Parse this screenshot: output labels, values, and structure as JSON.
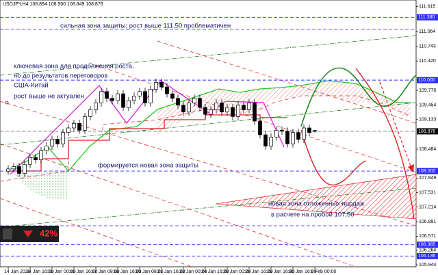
{
  "chart_data": {
    "type": "candlestick",
    "title": "USDJPY,H4  108.894 108.900 108.849 108.876",
    "categories": [
      "14 Jan 2020",
      null,
      null,
      null,
      "14 Jan 16:00",
      null,
      null,
      null,
      "16 Jan 00:00",
      null,
      null,
      null,
      "16 Jan 16:00",
      null,
      null,
      null,
      "17 Jan 08:00",
      null,
      null,
      null,
      "18 Jan 16:00",
      null,
      null,
      null,
      "20 Jan 08:00",
      null,
      null,
      null,
      "21 Jan 16:00",
      null,
      null,
      null,
      "23 Jan 00:00",
      null,
      null,
      null,
      "24 Jan 16:00",
      null,
      null,
      null,
      "28 Jan 00:00",
      null,
      null,
      null,
      "28 Jan 16:00",
      null,
      null,
      null,
      "29 Jan 16:00",
      null,
      null,
      null,
      "30 Jan 16:00",
      null,
      null,
      null,
      "1 Feb 00:00"
    ],
    "open": [
      108.0,
      108.05,
      108.1,
      107.95,
      108.15,
      108.3,
      108.25,
      108.45,
      108.55,
      108.7,
      108.6,
      108.85,
      108.95,
      109.05,
      108.9,
      109.2,
      109.35,
      109.5,
      109.75,
      109.6,
      109.55,
      109.7,
      109.4,
      109.55,
      109.65,
      109.75,
      109.5,
      109.8,
      109.95,
      109.85,
      109.7,
      109.6,
      109.45,
      109.3,
      109.5,
      109.6,
      109.4,
      109.25,
      109.35,
      109.5,
      109.3,
      109.4,
      109.2,
      109.45,
      109.35,
      109.5,
      109.1,
      108.8,
      108.55,
      108.75,
      108.9,
      108.88,
      108.6,
      108.85,
      108.7,
      108.95,
      108.894
    ],
    "high": [
      108.13,
      108.18,
      108.18,
      108.23,
      108.38,
      108.38,
      108.53,
      108.63,
      108.78,
      108.78,
      108.93,
      109.03,
      109.13,
      109.13,
      109.28,
      109.43,
      109.58,
      109.83,
      109.83,
      109.68,
      109.78,
      109.78,
      109.63,
      109.73,
      109.83,
      109.83,
      109.88,
      110.03,
      110.03,
      109.93,
      109.78,
      109.68,
      109.53,
      109.58,
      109.68,
      109.68,
      109.48,
      109.43,
      109.58,
      109.58,
      109.48,
      109.48,
      109.53,
      109.53,
      109.58,
      109.58,
      109.18,
      108.88,
      108.83,
      108.98,
      108.98,
      108.96,
      108.93,
      108.93,
      109.03,
      109.03,
      108.9
    ],
    "low": [
      107.92,
      107.97,
      107.87,
      107.87,
      108.07,
      108.17,
      108.17,
      108.37,
      108.47,
      108.52,
      108.52,
      108.77,
      108.87,
      108.82,
      108.82,
      109.12,
      109.27,
      109.42,
      109.52,
      109.47,
      109.47,
      109.32,
      109.32,
      109.47,
      109.57,
      109.42,
      109.42,
      109.72,
      109.77,
      109.62,
      109.52,
      109.37,
      109.22,
      109.22,
      109.42,
      109.32,
      109.17,
      109.17,
      109.27,
      109.22,
      109.22,
      109.12,
      109.12,
      109.27,
      109.27,
      109.02,
      108.72,
      108.47,
      108.47,
      108.67,
      108.8,
      108.52,
      108.52,
      108.62,
      108.62,
      108.77,
      108.849
    ],
    "close": [
      108.05,
      108.1,
      107.95,
      108.15,
      108.3,
      108.25,
      108.45,
      108.55,
      108.7,
      108.6,
      108.85,
      108.95,
      109.05,
      108.9,
      109.2,
      109.35,
      109.5,
      109.75,
      109.6,
      109.55,
      109.7,
      109.4,
      109.55,
      109.65,
      109.75,
      109.5,
      109.8,
      109.95,
      109.85,
      109.7,
      109.6,
      109.45,
      109.3,
      109.5,
      109.6,
      109.4,
      109.25,
      109.35,
      109.5,
      109.3,
      109.4,
      109.2,
      109.45,
      109.35,
      109.5,
      109.1,
      108.8,
      108.55,
      108.75,
      108.9,
      108.88,
      108.6,
      108.85,
      108.7,
      108.95,
      108.85,
      108.876
    ],
    "up_color": "#ffffff",
    "down_color": "#000000",
    "ylim": [
      105.9,
      111.76
    ],
    "yticks": [
      111.615,
      111.064,
      110.743,
      {
        "value": 110.42,
        "label": "110.420"
      },
      109.776,
      109.454,
      109.133,
      108.484,
      107.849,
      107.531,
      107.214,
      106.891,
      106.571,
      106.264,
      105.944
    ],
    "levels": [
      {
        "value": 111.38,
        "label": "111.380",
        "color": "#2b2bff"
      },
      {
        "value": 110,
        "label": "110.000",
        "color": "#2b2bff"
      },
      {
        "value": 108.876,
        "label": "108.876",
        "color": "#000000"
      },
      {
        "value": 108.002,
        "label": "108.002",
        "color": "#2b2bff"
      },
      {
        "value": 106.385,
        "label": "106.385",
        "color": "#2b2bff"
      },
      {
        "value": 106.136,
        "label": "106.136",
        "color": "#2b2bff"
      }
    ],
    "annotations": [
      "сильная зона защиты; рост выше 111,50 проблематичен",
      "ключевая зона для продолжения роста,",
      "но до результатов переговоров",
      "США-Китай",
      "рост выше не актуален",
      "формируется новая зона защиты",
      "новая зона отложенных продаж",
      "в расчете на пробой 107,50"
    ],
    "widget": {
      "value": 42,
      "label": "42%"
    }
  }
}
